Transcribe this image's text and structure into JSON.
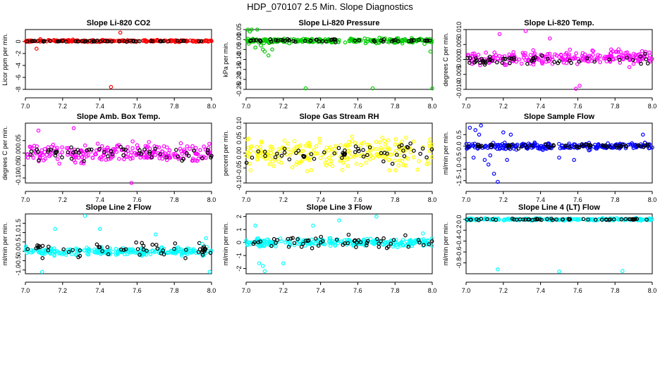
{
  "title": "HDP_070107  2.5 Min. Slope Diagnostics",
  "chart_data": [
    {
      "type": "scatter",
      "title": "Slope Li-820 CO2",
      "ylabel": "Licor ppm per min.",
      "xlabel": "",
      "xlim": [
        7.0,
        8.0
      ],
      "ylim": [
        -8,
        2
      ],
      "xticks": [
        7.0,
        7.2,
        7.4,
        7.6,
        7.8,
        8.0
      ],
      "xtick_labels": [
        "7.0",
        "7.2",
        "7.4",
        "7.6",
        "7.8",
        "8.0"
      ],
      "yticks": [
        -8,
        -6,
        -4,
        -2,
        0
      ],
      "ytick_labels": [
        "-8",
        "-6",
        "-4",
        "-2",
        "0"
      ],
      "primary_color": "#ff0000",
      "band": {
        "center": 0.1,
        "spread": 0.25
      },
      "secondary_band": {
        "center": 0.05,
        "spread": 0.15
      },
      "points": [
        [
          7.06,
          -1.2
        ],
        [
          7.46,
          -7.6
        ],
        [
          7.51,
          1.5
        ],
        [
          7.08,
          0.4
        ]
      ]
    },
    {
      "type": "scatter",
      "title": "Slope Li-820 Pressure",
      "ylabel": "kPa per min.",
      "xlabel": "",
      "xlim": [
        7.0,
        8.0
      ],
      "ylim": [
        -0.25,
        0.05
      ],
      "xticks": [
        7.0,
        7.2,
        7.4,
        7.6,
        7.8,
        8.0
      ],
      "xtick_labels": [
        "7.0",
        "7.2",
        "7.4",
        "7.6",
        "7.8",
        "8.0"
      ],
      "yticks": [
        -0.25,
        -0.2,
        -0.15,
        -0.1,
        -0.05,
        0.0,
        0.05
      ],
      "ytick_labels": [
        "-0.25",
        "-0.20",
        "-0.15",
        "-0.10",
        "-0.05",
        "0.00",
        "0.05"
      ],
      "primary_color": "#00cc00",
      "band": {
        "center": -0.005,
        "spread": 0.018
      },
      "secondary_band": {
        "center": -0.005,
        "spread": 0.012
      },
      "points": [
        [
          7.03,
          0.06
        ],
        [
          7.06,
          0.05
        ],
        [
          7.02,
          0.04
        ],
        [
          7.08,
          -0.03
        ],
        [
          7.1,
          -0.06
        ],
        [
          7.12,
          -0.08
        ],
        [
          7.09,
          -0.05
        ],
        [
          7.05,
          -0.04
        ],
        [
          7.14,
          -0.05
        ],
        [
          7.32,
          -0.245
        ],
        [
          7.68,
          -0.245
        ],
        [
          8.0,
          -0.245
        ],
        [
          7.99,
          -0.06
        ],
        [
          7.01,
          0.05
        ]
      ]
    },
    {
      "type": "scatter",
      "title": "Slope Li-820 Temp.",
      "ylabel": "degrees C per min.",
      "xlabel": "",
      "xlim": [
        7.0,
        8.0
      ],
      "ylim": [
        -0.01,
        0.01
      ],
      "xticks": [
        7.0,
        7.2,
        7.4,
        7.6,
        7.8,
        8.0
      ],
      "xtick_labels": [
        "7.0",
        "7.2",
        "7.4",
        "7.6",
        "7.8",
        "8.0"
      ],
      "yticks": [
        -0.01,
        -0.005,
        0.0,
        0.005,
        0.01
      ],
      "ytick_labels": [
        "-0.010",
        "-0.005",
        "0.000",
        "0.005",
        "0.010"
      ],
      "primary_color": "#ff00ff",
      "band": {
        "center": 0.0005,
        "spread": 0.0035
      },
      "secondary_band": {
        "center": 0.0,
        "spread": 0.0025
      },
      "points": [
        [
          7.32,
          0.0095
        ],
        [
          7.59,
          -0.0098
        ],
        [
          7.61,
          -0.0088
        ],
        [
          7.18,
          0.0085
        ],
        [
          7.45,
          0.007
        ]
      ]
    },
    {
      "type": "scatter",
      "title": "Slope Amb. Box Temp.",
      "ylabel": "degrees C per min.",
      "xlabel": "",
      "xlim": [
        7.0,
        8.0
      ],
      "ylim": [
        -0.12,
        0.12
      ],
      "xticks": [
        7.0,
        7.2,
        7.4,
        7.6,
        7.8,
        8.0
      ],
      "xtick_labels": [
        "7.0",
        "7.2",
        "7.4",
        "7.6",
        "7.8",
        "8.0"
      ],
      "yticks": [
        -0.1,
        -0.05,
        0.0,
        0.05
      ],
      "ytick_labels": [
        "-0.10",
        "-0.05",
        "0.00",
        "0.05"
      ],
      "primary_color": "#ff00ff",
      "band": {
        "center": 0.0,
        "spread": 0.055
      },
      "secondary_band": {
        "center": 0.0,
        "spread": 0.04
      },
      "points": [
        [
          7.26,
          0.1
        ],
        [
          7.57,
          -0.125
        ],
        [
          7.07,
          0.09
        ]
      ]
    },
    {
      "type": "scatter",
      "title": "Slope Gas Stream RH",
      "ylabel": "percent per min.",
      "xlabel": "",
      "xlim": [
        7.0,
        8.0
      ],
      "ylim": [
        -0.1,
        0.1
      ],
      "xticks": [
        7.0,
        7.2,
        7.4,
        7.6,
        7.8,
        8.0
      ],
      "xtick_labels": [
        "7.0",
        "7.2",
        "7.4",
        "7.6",
        "7.8",
        "8.0"
      ],
      "yticks": [
        -0.1,
        -0.05,
        0.0,
        0.05,
        0.1
      ],
      "ytick_labels": [
        "-0.10",
        "-0.05",
        "0.00",
        "0.05",
        "0.10"
      ],
      "primary_color": "#ffff00",
      "band": {
        "center": 0.0,
        "spread": 0.07
      },
      "secondary_band": {
        "center": 0.0,
        "spread": 0.045
      },
      "points": []
    },
    {
      "type": "scatter",
      "title": "Slope Sample Flow",
      "ylabel": "ml/min per min.",
      "xlabel": "",
      "xlim": [
        7.0,
        8.0
      ],
      "ylim": [
        -1.6,
        1.0
      ],
      "xticks": [
        7.0,
        7.2,
        7.4,
        7.6,
        7.8,
        8.0
      ],
      "xtick_labels": [
        "7.0",
        "7.2",
        "7.4",
        "7.6",
        "7.8",
        "8.0"
      ],
      "yticks": [
        -1.5,
        -1.0,
        -0.5,
        0.0,
        0.5
      ],
      "ytick_labels": [
        "-1.5",
        "-1.0",
        "-0.5",
        "0.0",
        "0.5"
      ],
      "primary_color": "#0000ff",
      "band": {
        "center": 0.0,
        "spread": 0.22
      },
      "secondary_band": {
        "center": 0.0,
        "spread": 0.15
      },
      "points": [
        [
          7.02,
          0.8
        ],
        [
          7.05,
          0.7
        ],
        [
          7.08,
          0.9
        ],
        [
          7.1,
          -0.6
        ],
        [
          7.12,
          -0.8
        ],
        [
          7.15,
          -1.2
        ],
        [
          7.17,
          -1.55
        ],
        [
          7.04,
          -0.5
        ],
        [
          7.2,
          0.6
        ],
        [
          7.07,
          0.5
        ],
        [
          7.13,
          -0.4
        ],
        [
          7.22,
          -0.6
        ],
        [
          7.24,
          0.5
        ],
        [
          7.5,
          -0.5
        ],
        [
          7.58,
          -0.6
        ],
        [
          7.95,
          0.5
        ]
      ]
    },
    {
      "type": "scatter",
      "title": "Slope Line 2 Flow",
      "ylabel": "ml/min per min.",
      "xlabel": "",
      "xlim": [
        7.0,
        8.0
      ],
      "ylim": [
        -1.2,
        2.0
      ],
      "xticks": [
        7.0,
        7.2,
        7.4,
        7.6,
        7.8,
        8.0
      ],
      "xtick_labels": [
        "7.0",
        "7.2",
        "7.4",
        "7.6",
        "7.8",
        "8.0"
      ],
      "yticks": [
        -1.0,
        -0.5,
        0.0,
        0.5,
        1.0,
        1.5
      ],
      "ytick_labels": [
        "-1.0",
        "-0.5",
        "0.0",
        "0.5",
        "1.0",
        "1.5"
      ],
      "primary_color": "#00ffff",
      "band": {
        "center": 0.0,
        "spread": 0.3
      },
      "secondary_band": {
        "center": 0.1,
        "spread": 0.55
      },
      "points": [
        [
          7.09,
          -1.1
        ],
        [
          7.32,
          1.9
        ],
        [
          7.16,
          1.2
        ],
        [
          7.99,
          -1.1
        ],
        [
          7.7,
          0.9
        ],
        [
          7.4,
          1.2
        ],
        [
          7.97,
          0.7
        ],
        [
          7.95,
          0.4
        ]
      ]
    },
    {
      "type": "scatter",
      "title": "Slope Line 3 Flow",
      "ylabel": "ml/min per min.",
      "xlabel": "",
      "xlim": [
        7.0,
        8.0
      ],
      "ylim": [
        -2.4,
        2.2
      ],
      "xticks": [
        7.0,
        7.2,
        7.4,
        7.6,
        7.8,
        8.0
      ],
      "xtick_labels": [
        "7.0",
        "7.2",
        "7.4",
        "7.6",
        "7.8",
        "8.0"
      ],
      "yticks": [
        -2,
        -1,
        0,
        1,
        2
      ],
      "ytick_labels": [
        "-2",
        "-1",
        "0",
        "1",
        "2"
      ],
      "primary_color": "#00ffff",
      "band": {
        "center": 0.0,
        "spread": 0.45
      },
      "secondary_band": {
        "center": 0.0,
        "spread": 0.7
      },
      "points": [
        [
          7.1,
          -2.2
        ],
        [
          7.09,
          -1.8
        ],
        [
          7.07,
          -1.6
        ],
        [
          7.05,
          1.3
        ],
        [
          7.5,
          1.7
        ],
        [
          7.7,
          2.0
        ],
        [
          7.36,
          1.3
        ],
        [
          7.2,
          -1.6
        ],
        [
          7.95,
          0.7
        ]
      ]
    },
    {
      "type": "scatter",
      "title": "Slope Line 4 (LT) Flow",
      "ylabel": "ml/min per min.",
      "xlabel": "",
      "xlim": [
        7.0,
        8.0
      ],
      "ylim": [
        -1.0,
        0.1
      ],
      "xticks": [
        7.0,
        7.2,
        7.4,
        7.6,
        7.8,
        8.0
      ],
      "xtick_labels": [
        "7.0",
        "7.2",
        "7.4",
        "7.6",
        "7.8",
        "8.0"
      ],
      "yticks": [
        -0.8,
        -0.6,
        -0.4,
        -0.2,
        0.0
      ],
      "ytick_labels": [
        "-0.8",
        "-0.6",
        "-0.4",
        "-0.2",
        "0.0"
      ],
      "primary_color": "#00ffff",
      "band": {
        "center": 0.0,
        "spread": 0.03
      },
      "secondary_band": {
        "center": 0.0,
        "spread": 0.02
      },
      "points": [
        [
          7.17,
          -0.92
        ],
        [
          7.5,
          -0.96
        ],
        [
          7.84,
          -0.95
        ]
      ]
    }
  ]
}
